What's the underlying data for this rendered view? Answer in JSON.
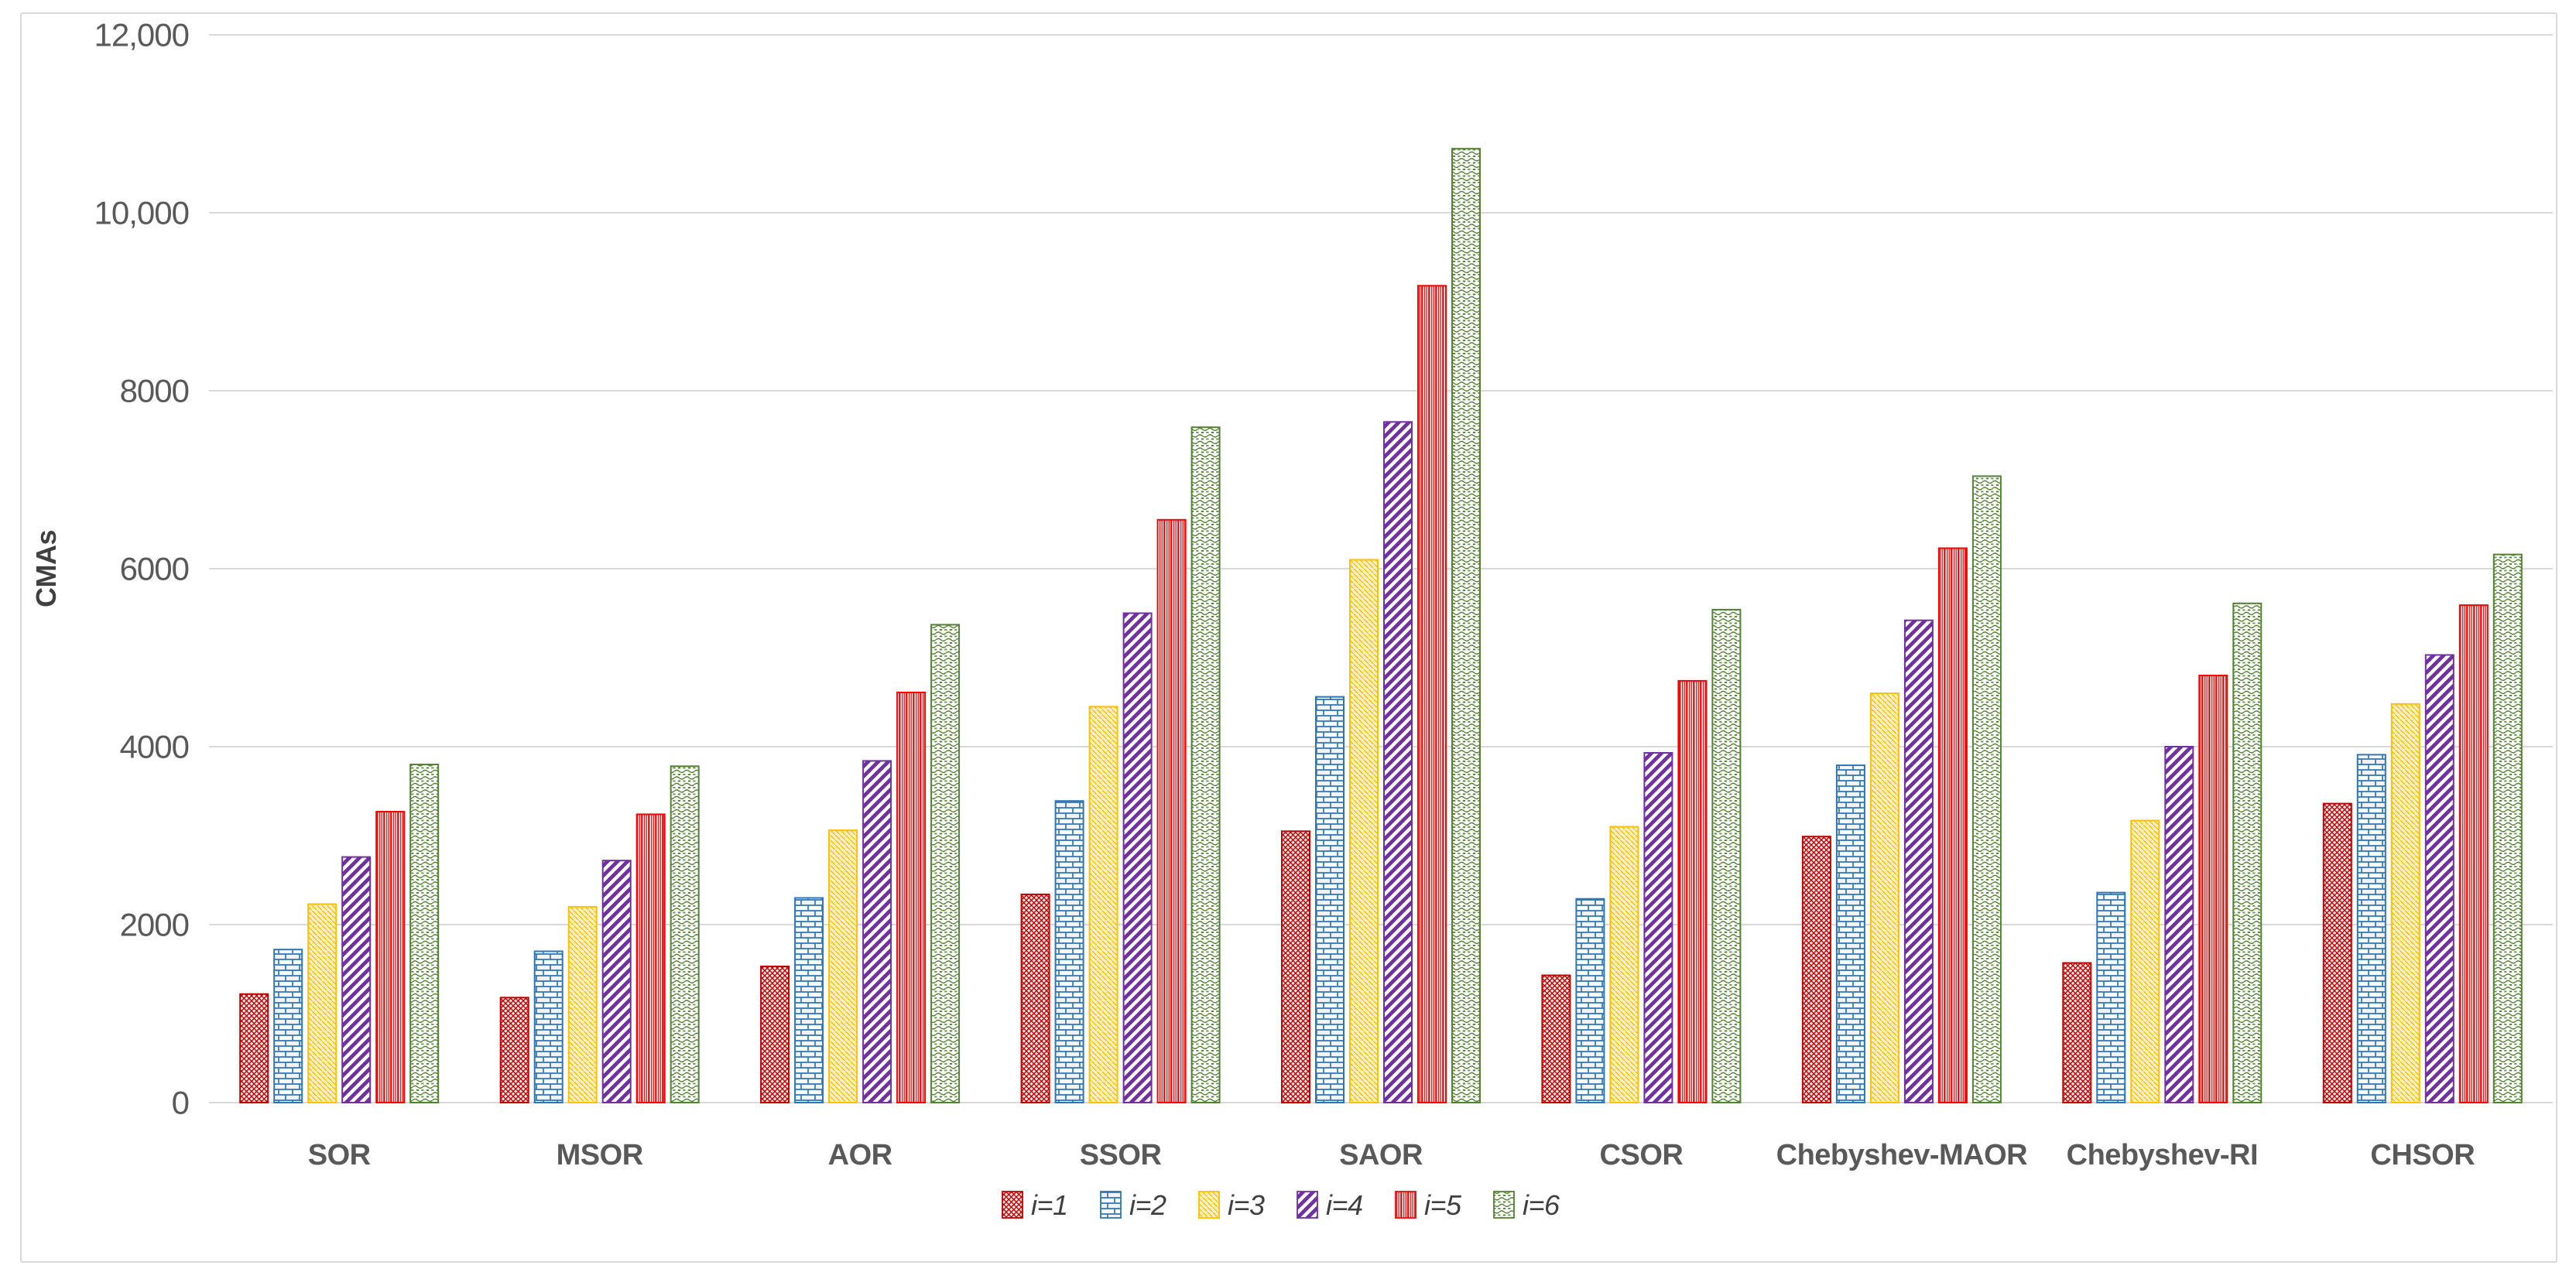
{
  "chart_data": {
    "type": "bar",
    "title": "",
    "xlabel": "",
    "ylabel": "CMAs",
    "ylim": [
      0,
      12000
    ],
    "grid": true,
    "legend_position": "bottom-center",
    "background": "#FFFFFF",
    "gridline_color": "#D9D9D9",
    "tick_color": "#595959",
    "y_ticks": [
      {
        "value": 0,
        "label": "0"
      },
      {
        "value": 2000,
        "label": "2000"
      },
      {
        "value": 4000,
        "label": "4000"
      },
      {
        "value": 6000,
        "label": "6000"
      },
      {
        "value": 8000,
        "label": "8000"
      },
      {
        "value": 10000,
        "label": "10,000"
      },
      {
        "value": 12000,
        "label": "12,000"
      }
    ],
    "categories": [
      "SOR",
      "MSOR",
      "AOR",
      "SSOR",
      "SAOR",
      "CSOR",
      "Chebyshev-MAOR",
      "Chebyshev-RI",
      "CHSOR"
    ],
    "series": [
      {
        "name": "i=1",
        "color": "#C00000",
        "pattern": "diamond-crosshatch",
        "values": [
          1220,
          1180,
          1530,
          2340,
          3050,
          1430,
          2990,
          1570,
          3360
        ]
      },
      {
        "name": "i=2",
        "color": "#2E75B6",
        "pattern": "brick",
        "values": [
          1720,
          1700,
          2300,
          3390,
          4560,
          2290,
          3790,
          2360,
          3910
        ]
      },
      {
        "name": "i=3",
        "color": "#FFC000",
        "pattern": "thin-back-diagonal",
        "values": [
          2230,
          2200,
          3060,
          4450,
          6100,
          3100,
          4600,
          3170,
          4480
        ]
      },
      {
        "name": "i=4",
        "color": "#7030A0",
        "pattern": "wide-forward-diagonal",
        "values": [
          2760,
          2720,
          3840,
          5500,
          7650,
          3930,
          5420,
          4000,
          5030
        ]
      },
      {
        "name": "i=5",
        "color": "#FF0000",
        "pattern": "vertical-lines",
        "values": [
          3270,
          3240,
          4610,
          6550,
          9180,
          4740,
          6230,
          4800,
          5590
        ]
      },
      {
        "name": "i=6",
        "color": "#548235",
        "pattern": "wave-dots",
        "values": [
          3800,
          3780,
          5370,
          7590,
          10720,
          5540,
          7040,
          5610,
          6160
        ]
      }
    ]
  }
}
